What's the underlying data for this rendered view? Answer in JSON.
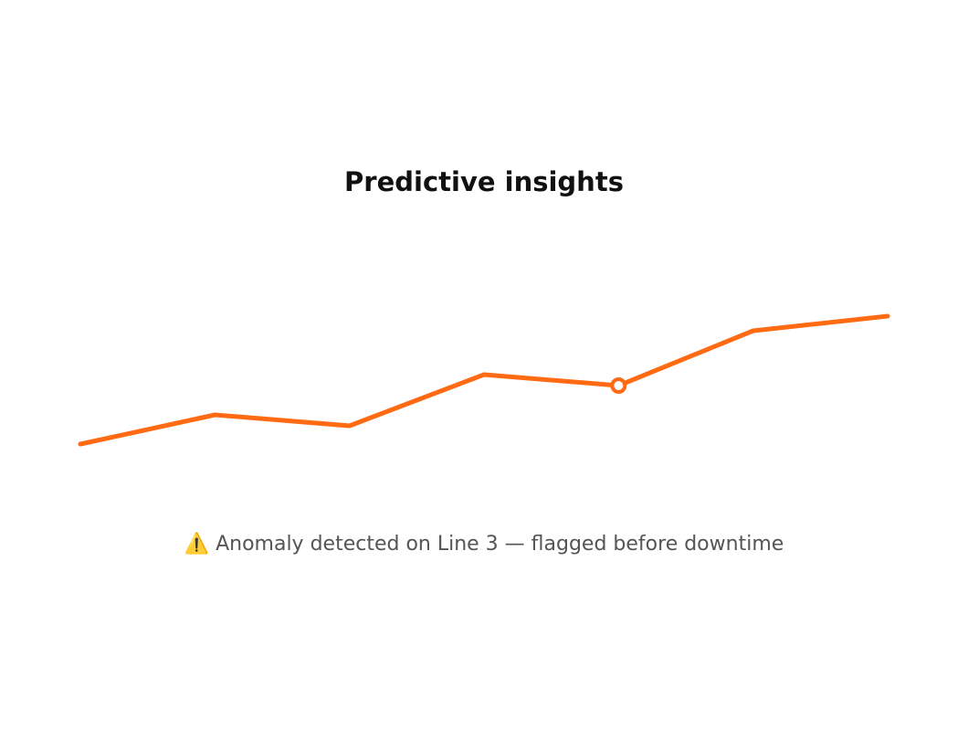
{
  "chart_data": {
    "type": "line",
    "title": "Predictive insights",
    "values": [
      17,
      33,
      27,
      55,
      49,
      79,
      87
    ],
    "color": "#ff6a13",
    "ylim": [
      0,
      100
    ],
    "anomaly_index": 4,
    "annotation": "⚠️ Anomaly detected on Line 3 — flagged before downtime"
  }
}
